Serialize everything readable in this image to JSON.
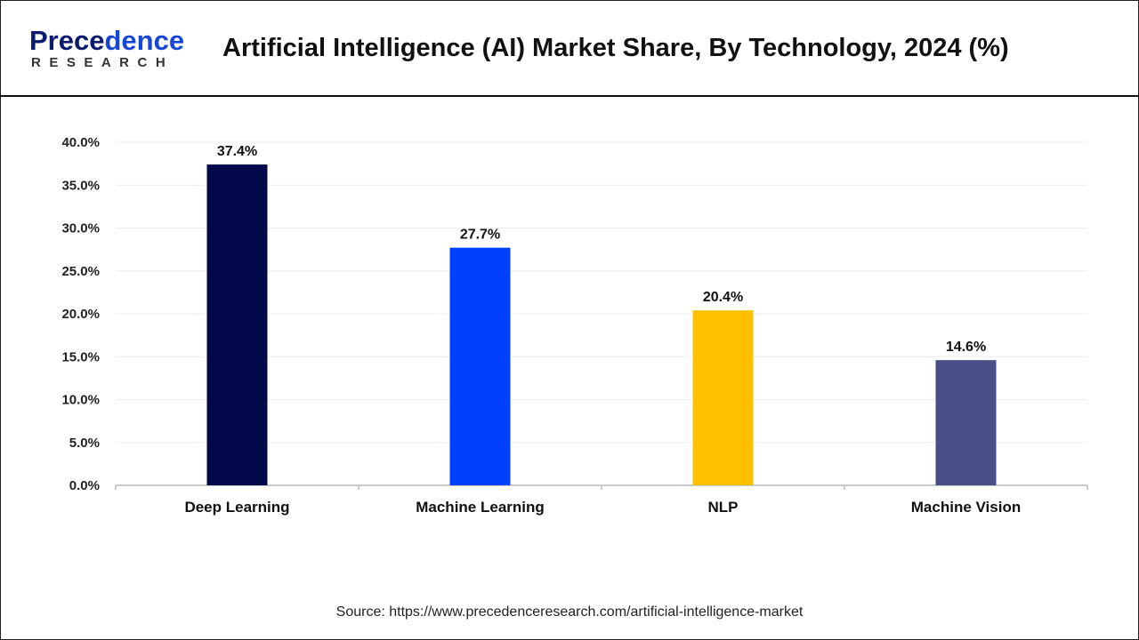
{
  "header": {
    "title": "Artificial Intelligence (AI) Market Share, By Technology, 2024 (%)",
    "logo_top": "Precedence",
    "logo_bottom": "RESEARCH"
  },
  "source": "Source: https://www.precedenceresearch.com/artificial-intelligence-market",
  "chart_data": {
    "type": "bar",
    "title": "Artificial Intelligence (AI) Market Share, By Technology, 2024 (%)",
    "categories": [
      "Deep Learning",
      "Machine Learning",
      "NLP",
      "Machine Vision"
    ],
    "values": [
      37.4,
      27.7,
      20.4,
      14.6
    ],
    "data_labels": [
      "37.4%",
      "27.7%",
      "20.4%",
      "14.6%"
    ],
    "colors": [
      "#02084a",
      "#0041ff",
      "#ffc000",
      "#4a4e86"
    ],
    "yticks": [
      "0.0%",
      "5.0%",
      "10.0%",
      "15.0%",
      "20.0%",
      "25.0%",
      "30.0%",
      "35.0%",
      "40.0%"
    ],
    "ylim": [
      0,
      40
    ],
    "grid": true,
    "xlabel": "",
    "ylabel": ""
  }
}
